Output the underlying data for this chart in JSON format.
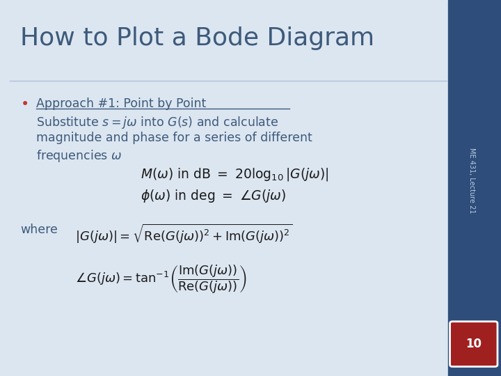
{
  "title": "How to Plot a Bode Diagram",
  "title_color": "#3d5a7a",
  "bg_color": "#dce6f1",
  "sidebar_color": "#2e4d7a",
  "slide_number": "10",
  "slide_number_bg": "#a02020",
  "sidebar_text": "ME 431, Lecture 21",
  "bullet_color": "#c0392b",
  "text_color": "#3d5a7a",
  "math_color": "#1a1a1a"
}
